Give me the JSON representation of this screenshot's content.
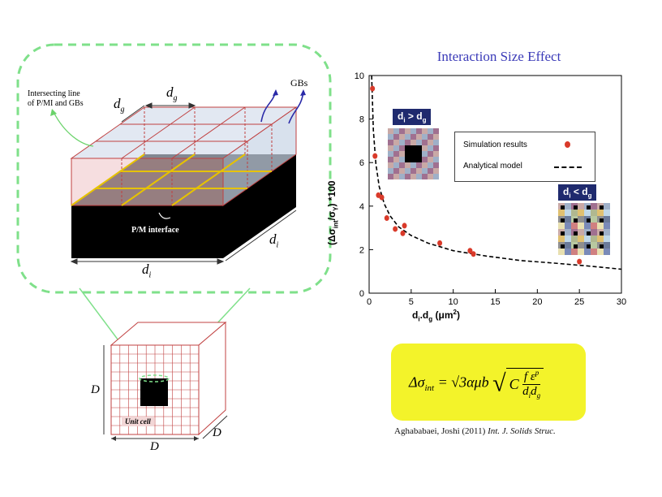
{
  "title": "Interaction Size Effect",
  "schematic": {
    "intersecting_line_label": "Intersecting line\nof P/MI and GBs",
    "intersecting_line_1": "Intersecting line",
    "intersecting_line_2": "of P/MI and GBs",
    "gbs_label": "GBs",
    "interface_label": "P/M interface",
    "dg_label_1": "d",
    "dg_sub_1": "g",
    "dg_label_2": "d",
    "dg_sub_2": "g",
    "di_label_bottom": "d",
    "di_sub_bottom": "i",
    "di_label_right": "d",
    "di_sub_right": "i",
    "unitcell_label": "Unit cell",
    "D_left": "D",
    "D_bottom": "D",
    "D_right": "D"
  },
  "inset_labels": {
    "large": "d",
    "large_sub1": "i",
    "large_op": " > d",
    "large_sub2": "g",
    "small": "d",
    "small_sub1": "i",
    "small_op": " < d",
    "small_sub2": "g"
  },
  "legend": {
    "simulation": "Simulation results",
    "analytical": "Analytical model"
  },
  "formula_text": "Δσint = √3 αμb √( C f εp / (di dg) )",
  "citation": {
    "authors": "Aghababaei,  Joshi (2011) ",
    "journal": "Int. J. Solids Struc."
  },
  "colors": {
    "title": "#3a3ab8",
    "points": "#d93a2a",
    "formula_bg": "#f3f32a",
    "dashed_frame": "#7fe08a"
  },
  "chart_data": {
    "type": "scatter",
    "title": "Interaction Size Effect",
    "xlabel": "d_i d_g (μm²)",
    "ylabel": "(Δσ_int/σ_Y)*100",
    "xlim": [
      0,
      30
    ],
    "ylim": [
      0,
      10
    ],
    "x_ticks": [
      "0",
      "5",
      "10",
      "15",
      "20",
      "25",
      "30"
    ],
    "y_ticks": [
      "0",
      "2",
      "4",
      "6",
      "8",
      "10"
    ],
    "series": [
      {
        "name": "Simulation results",
        "kind": "points",
        "x": [
          0.4,
          0.7,
          1.1,
          1.5,
          2.1,
          3.1,
          4.0,
          4.2,
          8.4,
          12.0,
          12.4,
          25.0
        ],
        "y": [
          9.4,
          6.3,
          4.5,
          4.4,
          3.45,
          2.95,
          2.75,
          3.1,
          2.3,
          1.95,
          1.8,
          1.45
        ]
      },
      {
        "name": "Analytical model",
        "kind": "dashed-line",
        "x": [
          0.3,
          0.5,
          0.8,
          1.2,
          1.8,
          2.5,
          3.5,
          5,
          7,
          10,
          14,
          18,
          22,
          26,
          30
        ],
        "y": [
          10.0,
          7.5,
          5.95,
          4.9,
          4.1,
          3.55,
          3.05,
          2.65,
          2.3,
          1.95,
          1.7,
          1.5,
          1.38,
          1.25,
          1.1
        ]
      }
    ],
    "legend_position": "top-right"
  }
}
